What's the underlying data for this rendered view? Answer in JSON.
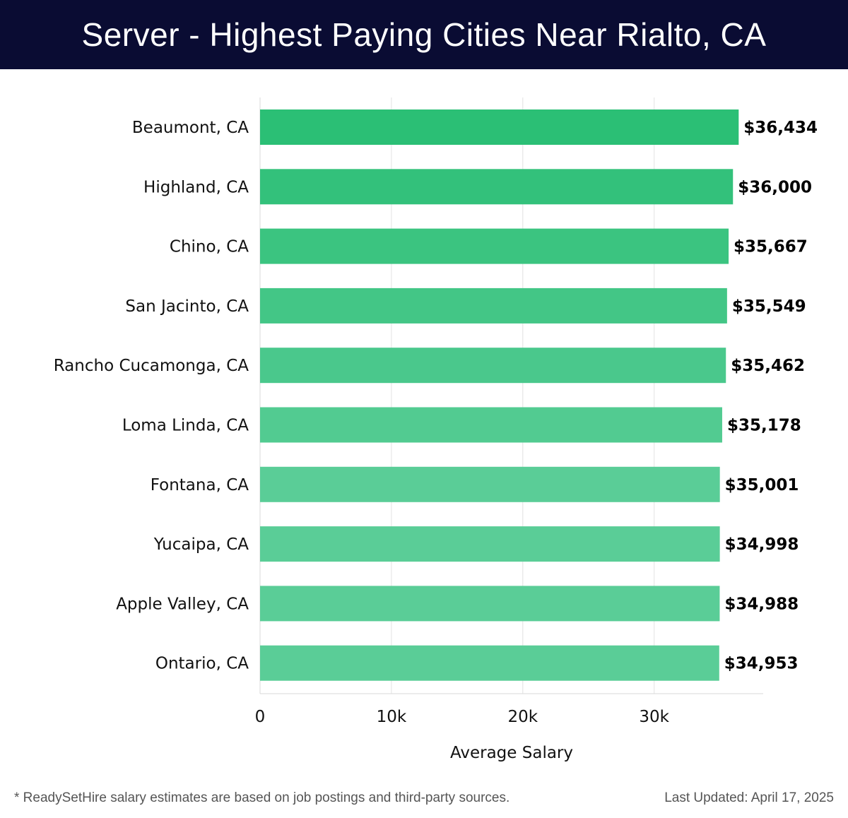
{
  "header": {
    "title": "Server - Highest Paying Cities Near Rialto, CA"
  },
  "chart_data": {
    "type": "bar",
    "orientation": "horizontal",
    "title": "Server - Highest Paying Cities Near Rialto, CA",
    "categories": [
      "Beaumont, CA",
      "Highland, CA",
      "Chino, CA",
      "San Jacinto, CA",
      "Rancho Cucamonga, CA",
      "Loma Linda, CA",
      "Fontana, CA",
      "Yucaipa, CA",
      "Apple Valley, CA",
      "Ontario, CA"
    ],
    "values": [
      36434,
      36000,
      35667,
      35549,
      35462,
      35178,
      35001,
      34998,
      34988,
      34953
    ],
    "value_labels": [
      "$36,434",
      "$36,000",
      "$35,667",
      "$35,549",
      "$35,462",
      "$35,178",
      "$35,001",
      "$34,998",
      "$34,988",
      "$34,953"
    ],
    "xlabel": "Average Salary",
    "ylabel": "",
    "xlim": [
      0,
      38300
    ],
    "xticks": [
      0,
      10000,
      20000,
      30000
    ],
    "xtick_labels": [
      "0",
      "10k",
      "20k",
      "30k"
    ],
    "grid": true,
    "bar_color_start": "#2bbf75",
    "bar_color_end": "#5acd97"
  },
  "footer": {
    "note": "* ReadySetHire salary estimates are based on job postings and third-party sources.",
    "updated": "Last Updated: April 17, 2025"
  }
}
